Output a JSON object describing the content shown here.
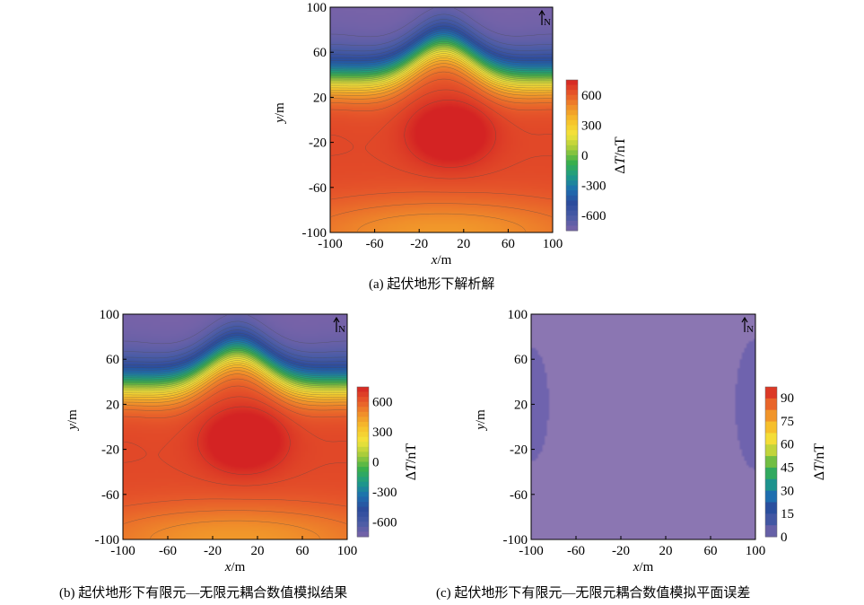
{
  "colors": {
    "ramp_stops": [
      "#7a63a8",
      "#4a5ca6",
      "#2c4b9c",
      "#1d6fb0",
      "#1d9c86",
      "#3bb04a",
      "#a6cc3b",
      "#f4e43a",
      "#f6c12b",
      "#f08f2a",
      "#e6562a",
      "#d42323"
    ],
    "error_field": "#8b76b2",
    "error_edge": "#6f63ae"
  },
  "chart_data": [
    {
      "type": "heatmap",
      "panel": "a",
      "caption": "(a) 起伏地形下解析解",
      "xlabel_var": "x",
      "xlabel_unit": "/m",
      "ylabel_var": "y",
      "ylabel_unit": "/m",
      "xlim": [
        -100,
        100
      ],
      "ylim": [
        -100,
        100
      ],
      "xticks": [
        "-100",
        "-60",
        "-20",
        "20",
        "60",
        "100"
      ],
      "yticks": [
        "100",
        "60",
        "20",
        "-20",
        "-60",
        "-100"
      ],
      "north_label": "N",
      "colorbar": {
        "label_prefix": "Δ",
        "label_var": "T",
        "label_unit": "/nT",
        "range": [
          -750,
          750
        ],
        "ticks": [
          "600",
          "300",
          "0",
          "-300",
          "-600"
        ]
      },
      "field": "analytic"
    },
    {
      "type": "heatmap",
      "panel": "b",
      "caption": "(b) 起伏地形下有限元—无限元耦合数值模拟结果",
      "xlabel_var": "x",
      "xlabel_unit": "/m",
      "ylabel_var": "y",
      "ylabel_unit": "/m",
      "xlim": [
        -100,
        100
      ],
      "ylim": [
        -100,
        100
      ],
      "xticks": [
        "-100",
        "-60",
        "-20",
        "20",
        "60",
        "100"
      ],
      "yticks": [
        "100",
        "60",
        "20",
        "-20",
        "-60",
        "-100"
      ],
      "north_label": "N",
      "colorbar": {
        "label_prefix": "Δ",
        "label_var": "T",
        "label_unit": "/nT",
        "range": [
          -750,
          750
        ],
        "ticks": [
          "600",
          "300",
          "0",
          "-300",
          "-600"
        ]
      },
      "field": "numerical"
    },
    {
      "type": "heatmap",
      "panel": "c",
      "caption": "(c) 起伏地形下有限元—无限元耦合数值模拟平面误差",
      "xlabel_var": "x",
      "xlabel_unit": "/m",
      "ylabel_var": "y",
      "ylabel_unit": "/m",
      "xlim": [
        -100,
        100
      ],
      "ylim": [
        -100,
        100
      ],
      "xticks": [
        "-100",
        "-60",
        "-20",
        "20",
        "60",
        "100"
      ],
      "yticks": [
        "100",
        "60",
        "20",
        "-20",
        "-60",
        "-100"
      ],
      "north_label": "N",
      "colorbar": {
        "label_prefix": "Δ",
        "label_var": "T",
        "label_unit": "/nT",
        "range": [
          0,
          97
        ],
        "ticks": [
          "90",
          "75",
          "60",
          "45",
          "30",
          "15",
          "0"
        ]
      },
      "field": "error"
    }
  ]
}
